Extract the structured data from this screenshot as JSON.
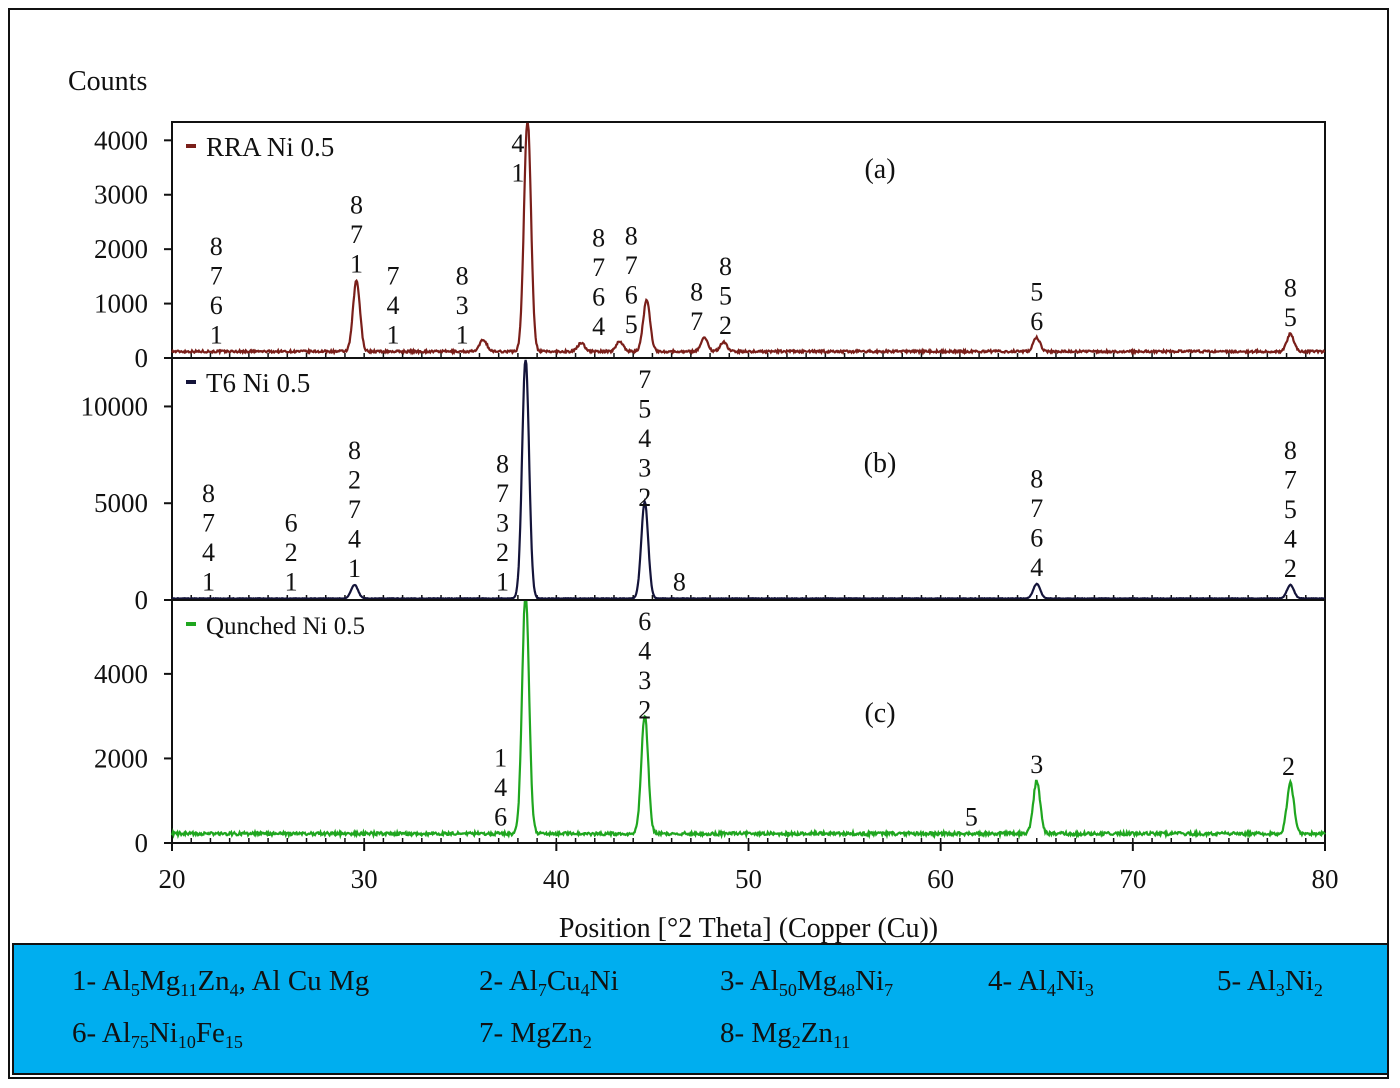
{
  "chart_data": {
    "type": "line",
    "ylabel": "Counts",
    "xlabel": "Position [°2 Theta] (Copper (Cu))",
    "x_ticks": [
      20,
      30,
      40,
      50,
      60,
      70,
      80
    ],
    "xlim": [
      20,
      80
    ],
    "grid": false,
    "panels": [
      {
        "id": "a",
        "series_name": "RRA Ni 0.5",
        "color": "#7a1f1a",
        "panel_label": "(a)",
        "ylim": [
          0,
          4300
        ],
        "y_ticks": [
          "0",
          "1000",
          "2000",
          "3000",
          "4000"
        ],
        "y_tick_values": [
          0,
          1000,
          2000,
          3000,
          4000
        ],
        "baseline": 120,
        "peaks": [
          [
            29.6,
            1300
          ],
          [
            38.5,
            4300
          ],
          [
            44.7,
            950
          ],
          [
            47.7,
            250
          ],
          [
            48.7,
            170
          ],
          [
            65.0,
            250
          ],
          [
            78.2,
            320
          ],
          [
            36.2,
            220
          ],
          [
            43.3,
            190
          ],
          [
            41.3,
            160
          ]
        ],
        "annotations": [
          {
            "x": 22.3,
            "lines": [
              "8",
              "7",
              "6",
              "1"
            ]
          },
          {
            "x": 29.6,
            "lines": [
              "8",
              "7",
              "1"
            ]
          },
          {
            "x": 31.5,
            "lines": [
              "7",
              "4",
              "1"
            ]
          },
          {
            "x": 35.1,
            "lines": [
              "8",
              "3",
              "1"
            ]
          },
          {
            "x": 38.0,
            "lines": [
              "4",
              "1"
            ]
          },
          {
            "x": 42.2,
            "lines": [
              "8",
              "7",
              "6",
              "4"
            ]
          },
          {
            "x": 43.9,
            "lines": [
              "8",
              "7",
              "6",
              "5"
            ]
          },
          {
            "x": 47.3,
            "lines": [
              "8",
              "7"
            ]
          },
          {
            "x": 48.8,
            "lines": [
              "8",
              "5",
              "2"
            ]
          },
          {
            "x": 65.0,
            "lines": [
              "5",
              "6"
            ]
          },
          {
            "x": 78.2,
            "lines": [
              "8",
              "5"
            ]
          }
        ]
      },
      {
        "id": "b",
        "series_name": "T6 Ni 0.5",
        "color": "#14143a",
        "panel_label": "(b)",
        "ylim": [
          0,
          12400
        ],
        "y_ticks": [
          "0",
          "5000",
          "10000"
        ],
        "y_tick_values": [
          0,
          5000,
          10000
        ],
        "baseline": 80,
        "peaks": [
          [
            29.5,
            700
          ],
          [
            38.4,
            12400
          ],
          [
            44.6,
            5000
          ],
          [
            65.0,
            750
          ],
          [
            78.2,
            700
          ]
        ],
        "annotations": [
          {
            "x": 21.9,
            "lines": [
              "8",
              "7",
              "4",
              "1"
            ]
          },
          {
            "x": 26.2,
            "lines": [
              "6",
              "2",
              "1"
            ]
          },
          {
            "x": 29.5,
            "lines": [
              "8",
              "2",
              "7",
              "4",
              "1"
            ]
          },
          {
            "x": 37.2,
            "lines": [
              "8",
              "7",
              "3",
              "2",
              "1"
            ]
          },
          {
            "x": 44.6,
            "lines": [
              "7",
              "5",
              "4",
              "3",
              "2"
            ]
          },
          {
            "x": 46.4,
            "lines": [
              "8"
            ]
          },
          {
            "x": 65.0,
            "lines": [
              "8",
              "7",
              "6",
              "4"
            ]
          },
          {
            "x": 78.2,
            "lines": [
              "8",
              "7",
              "5",
              "4",
              "2"
            ]
          }
        ]
      },
      {
        "id": "c",
        "series_name": "Qunched Ni 0.5",
        "color": "#1fa61f",
        "panel_label": "(c)",
        "ylim": [
          0,
          5700
        ],
        "y_ticks": [
          "0",
          "2000",
          "4000"
        ],
        "y_tick_values": [
          0,
          2000,
          4000
        ],
        "baseline": 220,
        "peaks": [
          [
            38.4,
            5700
          ],
          [
            44.6,
            2800
          ],
          [
            65.0,
            1250
          ],
          [
            78.2,
            1200
          ]
        ],
        "annotations": [
          {
            "x": 37.1,
            "lines": [
              "1",
              "4",
              "6"
            ]
          },
          {
            "x": 44.6,
            "lines": [
              "6",
              "4",
              "3",
              "2"
            ]
          },
          {
            "x": 61.6,
            "lines": [
              "5"
            ]
          },
          {
            "x": 65.0,
            "lines": [
              "3"
            ]
          },
          {
            "x": 78.1,
            "lines": [
              "2"
            ]
          }
        ]
      }
    ]
  },
  "legend": {
    "items": [
      {
        "num": "1-",
        "parts": [
          [
            "Al",
            ""
          ],
          [
            "5",
            "sub"
          ],
          [
            "Mg",
            ""
          ],
          [
            "11",
            "sub"
          ],
          [
            "Zn",
            ""
          ],
          [
            "4",
            "sub"
          ],
          [
            ", Al Cu Mg",
            ""
          ]
        ]
      },
      {
        "num": "2-",
        "parts": [
          [
            "Al",
            ""
          ],
          [
            "7",
            "sub"
          ],
          [
            "Cu",
            ""
          ],
          [
            "4",
            "sub"
          ],
          [
            "Ni",
            ""
          ]
        ]
      },
      {
        "num": "3-",
        "parts": [
          [
            "Al",
            ""
          ],
          [
            "50",
            "sub"
          ],
          [
            "Mg",
            ""
          ],
          [
            "48",
            "sub"
          ],
          [
            "Ni",
            ""
          ],
          [
            "7",
            "sub"
          ]
        ]
      },
      {
        "num": "4-",
        "parts": [
          [
            "Al",
            ""
          ],
          [
            "4",
            "sub"
          ],
          [
            "Ni",
            ""
          ],
          [
            "3",
            "sub"
          ]
        ]
      },
      {
        "num": "5-",
        "parts": [
          [
            "Al",
            ""
          ],
          [
            "3",
            "sub"
          ],
          [
            "Ni",
            ""
          ],
          [
            "2",
            "sub"
          ]
        ]
      },
      {
        "num": "6-",
        "parts": [
          [
            "Al",
            ""
          ],
          [
            "75",
            "sub"
          ],
          [
            "Ni",
            ""
          ],
          [
            "10",
            "sub"
          ],
          [
            "Fe",
            ""
          ],
          [
            "15",
            "sub"
          ]
        ]
      },
      {
        "num": "7-",
        "parts": [
          [
            "MgZn",
            ""
          ],
          [
            "2",
            "sub"
          ]
        ]
      },
      {
        "num": "8-",
        "parts": [
          [
            "Mg",
            ""
          ],
          [
            "2",
            "sub"
          ],
          [
            "Zn",
            ""
          ],
          [
            "11",
            "sub"
          ]
        ]
      }
    ]
  }
}
